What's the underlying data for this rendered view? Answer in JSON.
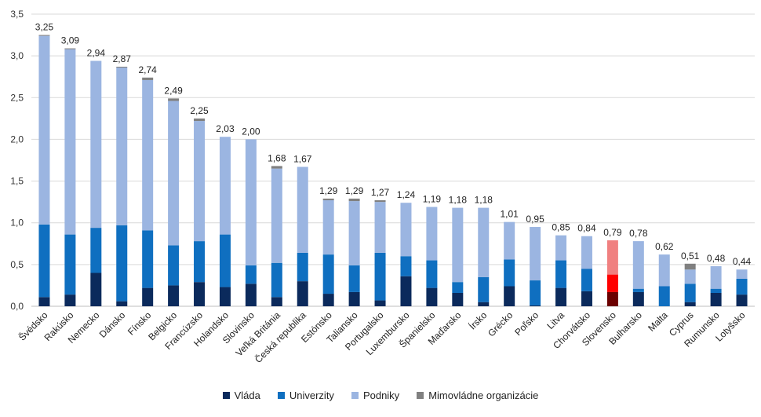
{
  "chart_data": {
    "type": "bar",
    "stacked": true,
    "categories": [
      "Švédsko",
      "Rakúsko",
      "Nemecko",
      "Dánsko",
      "Fínsko",
      "Belgicko",
      "Francúzsko",
      "Holandsko",
      "Slovinsko",
      "Veľká Británia",
      "Česká republika",
      "Estónsko",
      "Taliansko",
      "Portugalsko",
      "Luxembursko",
      "Španielsko",
      "Maďarsko",
      "Írsko",
      "Grécko",
      "Poľsko",
      "Litva",
      "Chorvátsko",
      "Slovensko",
      "Bulharsko",
      "Malta",
      "Cyprus",
      "Rumunsko",
      "Lotyšsko"
    ],
    "totals": [
      "3,25",
      "3,09",
      "2,94",
      "2,87",
      "2,74",
      "2,49",
      "2,25",
      "2,03",
      "2,00",
      "1,68",
      "1,67",
      "1,29",
      "1,29",
      "1,27",
      "1,24",
      "1,19",
      "1,18",
      "1,18",
      "1,01",
      "0,95",
      "0,85",
      "0,84",
      "0,79",
      "0,78",
      "0,62",
      "0,51",
      "0,48",
      "0,44"
    ],
    "series": [
      {
        "name": "Vláda",
        "color": "#0b2a5c",
        "values": [
          0.11,
          0.14,
          0.4,
          0.06,
          0.22,
          0.25,
          0.29,
          0.23,
          0.27,
          0.11,
          0.3,
          0.15,
          0.17,
          0.07,
          0.36,
          0.22,
          0.16,
          0.05,
          0.24,
          0.01,
          0.22,
          0.18,
          0.17,
          0.17,
          0.0,
          0.05,
          0.16,
          0.14
        ]
      },
      {
        "name": "Univerzity",
        "color": "#0f6fc0",
        "values": [
          0.87,
          0.72,
          0.54,
          0.91,
          0.69,
          0.48,
          0.49,
          0.63,
          0.22,
          0.41,
          0.34,
          0.47,
          0.32,
          0.57,
          0.24,
          0.33,
          0.13,
          0.3,
          0.32,
          0.3,
          0.33,
          0.27,
          0.21,
          0.04,
          0.24,
          0.22,
          0.05,
          0.19
        ]
      },
      {
        "name": "Podniky",
        "color": "#9bb5e1",
        "values": [
          2.26,
          2.22,
          2.0,
          1.89,
          1.8,
          1.73,
          1.44,
          1.17,
          1.51,
          1.13,
          1.03,
          0.65,
          0.77,
          0.61,
          0.64,
          0.64,
          0.89,
          0.83,
          0.45,
          0.64,
          0.3,
          0.39,
          0.41,
          0.57,
          0.38,
          0.17,
          0.27,
          0.11
        ]
      },
      {
        "name": "Mimovládne organizácie",
        "color": "#808080",
        "values": [
          0.01,
          0.01,
          0.0,
          0.01,
          0.03,
          0.03,
          0.03,
          0.0,
          0.0,
          0.03,
          0.0,
          0.02,
          0.03,
          0.02,
          0.0,
          0.0,
          0.0,
          0.0,
          0.0,
          0.0,
          0.0,
          0.0,
          0.0,
          0.0,
          0.0,
          0.07,
          0.0,
          0.0
        ]
      }
    ],
    "highlight": {
      "category": "Slovensko",
      "colors": [
        "#6b0000",
        "#ff0000",
        "#f08080",
        "#f08080"
      ]
    },
    "y_ticks": [
      "0,0",
      "0,5",
      "1,0",
      "1,5",
      "2,0",
      "2,5",
      "3,0",
      "3,5"
    ],
    "ylim": [
      0,
      3.5
    ],
    "grid": true,
    "legend_position": "bottom",
    "title": "",
    "xlabel": "",
    "ylabel": ""
  }
}
